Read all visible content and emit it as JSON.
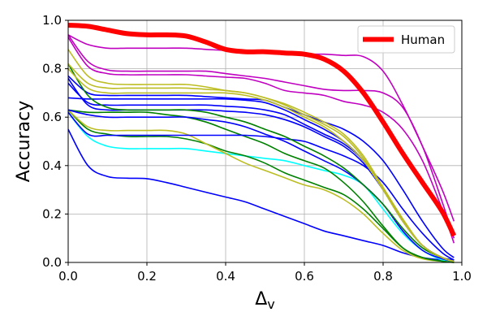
{
  "chart_data": {
    "type": "line",
    "title": "",
    "xlabel": "Δ",
    "xlabel_sub": "v",
    "ylabel": "Accuracy",
    "xlim": [
      0.0,
      1.0
    ],
    "ylim": [
      0.0,
      1.0
    ],
    "x_ticks": [
      "0.0",
      "0.2",
      "0.4",
      "0.6",
      "0.8",
      "1.0"
    ],
    "y_ticks": [
      "0.0",
      "0.2",
      "0.4",
      "0.6",
      "0.8",
      "1.0"
    ],
    "grid": true,
    "legend": {
      "position": "top-right",
      "entries": [
        "Human"
      ]
    },
    "x": [
      0.0,
      0.05,
      0.1,
      0.15,
      0.2,
      0.25,
      0.3,
      0.35,
      0.4,
      0.45,
      0.5,
      0.55,
      0.6,
      0.65,
      0.7,
      0.75,
      0.8,
      0.85,
      0.9,
      0.95,
      0.98
    ],
    "series": [
      {
        "name": "",
        "color": "#0000ff",
        "values": [
          0.55,
          0.4,
          0.355,
          0.348,
          0.346,
          0.33,
          0.31,
          0.29,
          0.27,
          0.25,
          0.22,
          0.19,
          0.16,
          0.13,
          0.11,
          0.09,
          0.07,
          0.04,
          0.02,
          0.01,
          0.005
        ]
      },
      {
        "name": "",
        "color": "#00ffff",
        "values": [
          0.62,
          0.52,
          0.48,
          0.47,
          0.47,
          0.47,
          0.47,
          0.46,
          0.45,
          0.44,
          0.43,
          0.42,
          0.4,
          0.38,
          0.36,
          0.32,
          0.22,
          0.12,
          0.05,
          0.01,
          0.005
        ]
      },
      {
        "name": "",
        "color": "#008000",
        "values": [
          0.63,
          0.55,
          0.53,
          0.52,
          0.52,
          0.52,
          0.51,
          0.49,
          0.46,
          0.44,
          0.41,
          0.37,
          0.34,
          0.31,
          0.28,
          0.22,
          0.14,
          0.06,
          0.02,
          0.005,
          0.0
        ]
      },
      {
        "name": "",
        "color": "#bcbd22",
        "values": [
          0.63,
          0.56,
          0.545,
          0.545,
          0.545,
          0.545,
          0.53,
          0.49,
          0.45,
          0.41,
          0.38,
          0.35,
          0.32,
          0.3,
          0.26,
          0.2,
          0.12,
          0.05,
          0.015,
          0.005,
          0.0
        ]
      },
      {
        "name": "",
        "color": "#008000",
        "values": [
          0.63,
          0.62,
          0.62,
          0.62,
          0.62,
          0.61,
          0.6,
          0.58,
          0.55,
          0.52,
          0.49,
          0.45,
          0.42,
          0.39,
          0.33,
          0.25,
          0.15,
          0.06,
          0.02,
          0.005,
          0.0
        ]
      },
      {
        "name": "",
        "color": "#0000ff",
        "values": [
          0.63,
          0.61,
          0.6,
          0.6,
          0.6,
          0.6,
          0.6,
          0.59,
          0.58,
          0.56,
          0.53,
          0.5,
          0.46,
          0.42,
          0.38,
          0.32,
          0.24,
          0.13,
          0.05,
          0.015,
          0.005
        ]
      },
      {
        "name": "",
        "color": "#0000ff",
        "values": [
          0.62,
          0.53,
          0.525,
          0.525,
          0.525,
          0.525,
          0.525,
          0.525,
          0.525,
          0.525,
          0.52,
          0.51,
          0.5,
          0.47,
          0.44,
          0.4,
          0.33,
          0.22,
          0.12,
          0.04,
          0.01
        ]
      },
      {
        "name": "",
        "color": "#0000ff",
        "values": [
          0.68,
          0.675,
          0.675,
          0.675,
          0.675,
          0.675,
          0.675,
          0.675,
          0.675,
          0.67,
          0.66,
          0.63,
          0.59,
          0.55,
          0.5,
          0.42,
          0.3,
          0.17,
          0.07,
          0.02,
          0.01
        ]
      },
      {
        "name": "",
        "color": "#0000ff",
        "values": [
          0.74,
          0.66,
          0.65,
          0.65,
          0.65,
          0.65,
          0.65,
          0.65,
          0.645,
          0.64,
          0.63,
          0.61,
          0.57,
          0.53,
          0.49,
          0.42,
          0.3,
          0.17,
          0.07,
          0.02,
          0.01
        ]
      },
      {
        "name": "",
        "color": "#0000ff",
        "values": [
          0.76,
          0.65,
          0.63,
          0.63,
          0.63,
          0.63,
          0.63,
          0.63,
          0.625,
          0.62,
          0.61,
          0.59,
          0.56,
          0.52,
          0.48,
          0.41,
          0.3,
          0.17,
          0.07,
          0.02,
          0.01
        ]
      },
      {
        "name": "",
        "color": "#0000ff",
        "values": [
          0.77,
          0.7,
          0.69,
          0.69,
          0.69,
          0.69,
          0.69,
          0.685,
          0.68,
          0.675,
          0.67,
          0.64,
          0.61,
          0.58,
          0.55,
          0.5,
          0.42,
          0.3,
          0.17,
          0.06,
          0.02
        ]
      },
      {
        "name": "",
        "color": "#008000",
        "values": [
          0.82,
          0.69,
          0.64,
          0.63,
          0.63,
          0.63,
          0.63,
          0.62,
          0.6,
          0.58,
          0.55,
          0.52,
          0.48,
          0.44,
          0.39,
          0.32,
          0.24,
          0.14,
          0.06,
          0.02,
          0.005
        ]
      },
      {
        "name": "",
        "color": "#bcbd22",
        "values": [
          0.8,
          0.72,
          0.7,
          0.7,
          0.7,
          0.7,
          0.7,
          0.7,
          0.7,
          0.69,
          0.67,
          0.64,
          0.6,
          0.56,
          0.5,
          0.42,
          0.3,
          0.17,
          0.07,
          0.02,
          0.005
        ]
      },
      {
        "name": "",
        "color": "#bcbd22",
        "values": [
          0.82,
          0.74,
          0.72,
          0.72,
          0.72,
          0.72,
          0.72,
          0.715,
          0.71,
          0.7,
          0.68,
          0.65,
          0.61,
          0.57,
          0.52,
          0.43,
          0.3,
          0.17,
          0.07,
          0.02,
          0.005
        ]
      },
      {
        "name": "",
        "color": "#bcbd22",
        "values": [
          0.88,
          0.77,
          0.74,
          0.735,
          0.735,
          0.735,
          0.735,
          0.725,
          0.71,
          0.7,
          0.68,
          0.655,
          0.62,
          0.58,
          0.53,
          0.44,
          0.31,
          0.18,
          0.07,
          0.02,
          0.005
        ]
      },
      {
        "name": "",
        "color": "#c000c0",
        "values": [
          0.93,
          0.81,
          0.78,
          0.775,
          0.775,
          0.775,
          0.775,
          0.77,
          0.765,
          0.76,
          0.74,
          0.71,
          0.7,
          0.69,
          0.665,
          0.65,
          0.62,
          0.55,
          0.42,
          0.22,
          0.08
        ]
      },
      {
        "name": "",
        "color": "#c000c0",
        "values": [
          0.94,
          0.83,
          0.795,
          0.79,
          0.79,
          0.79,
          0.79,
          0.79,
          0.78,
          0.77,
          0.76,
          0.745,
          0.73,
          0.715,
          0.71,
          0.71,
          0.7,
          0.64,
          0.48,
          0.25,
          0.1
        ]
      },
      {
        "name": "",
        "color": "#c000c0",
        "values": [
          0.94,
          0.9,
          0.885,
          0.885,
          0.885,
          0.885,
          0.885,
          0.88,
          0.875,
          0.865,
          0.865,
          0.86,
          0.86,
          0.86,
          0.855,
          0.85,
          0.79,
          0.65,
          0.48,
          0.3,
          0.17
        ]
      },
      {
        "name": "Human",
        "color": "#ff0000",
        "values": [
          0.98,
          0.975,
          0.96,
          0.945,
          0.94,
          0.94,
          0.935,
          0.91,
          0.88,
          0.87,
          0.87,
          0.865,
          0.86,
          0.84,
          0.79,
          0.7,
          0.58,
          0.45,
          0.33,
          0.21,
          0.11
        ]
      }
    ]
  }
}
